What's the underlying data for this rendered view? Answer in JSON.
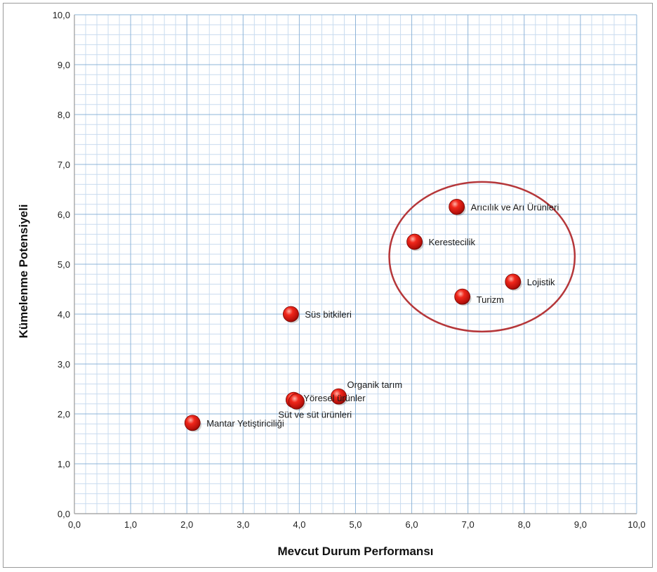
{
  "chart_data": {
    "type": "scatter",
    "xlabel": "Mevcut Durum Performansı",
    "ylabel": "Kümelenme Potensiyeli",
    "xlim": [
      0,
      10
    ],
    "ylim": [
      0,
      10
    ],
    "x_ticks": [
      "0,0",
      "1,0",
      "2,0",
      "3,0",
      "4,0",
      "5,0",
      "6,0",
      "7,0",
      "8,0",
      "9,0",
      "10,0"
    ],
    "y_ticks": [
      "0,0",
      "1,0",
      "2,0",
      "3,0",
      "4,0",
      "5,0",
      "6,0",
      "7,0",
      "8,0",
      "9,0",
      "10,0"
    ],
    "grid": true,
    "minor_grid": true,
    "points": [
      {
        "label": "Arıcılık ve Arı Ürünleri",
        "x": 6.8,
        "y": 6.15
      },
      {
        "label": "Kerestecilik",
        "x": 6.05,
        "y": 5.45
      },
      {
        "label": "Lojistik",
        "x": 7.8,
        "y": 4.65
      },
      {
        "label": "Turizm",
        "x": 6.9,
        "y": 4.35
      },
      {
        "label": "Süs bitkileri",
        "x": 3.85,
        "y": 4.0
      },
      {
        "label": "Organik tarım",
        "x": 4.7,
        "y": 2.35
      },
      {
        "label": "Yöresel ürünler",
        "x": 3.9,
        "y": 2.28
      },
      {
        "label": "Süt ve süt ürünleri",
        "x": 3.95,
        "y": 2.25
      },
      {
        "label": "Mantar Yetiştiriciliği",
        "x": 2.1,
        "y": 1.82
      }
    ],
    "highlight": {
      "shape": "ellipse",
      "color": "#b5373a",
      "cx": 7.25,
      "cy": 5.15,
      "rx": 1.65,
      "ry": 1.5
    },
    "colors": {
      "marker": "#e01a14",
      "major_grid": "#8eb4d8",
      "minor_grid": "#c9dcef",
      "axis": "#999999"
    }
  }
}
